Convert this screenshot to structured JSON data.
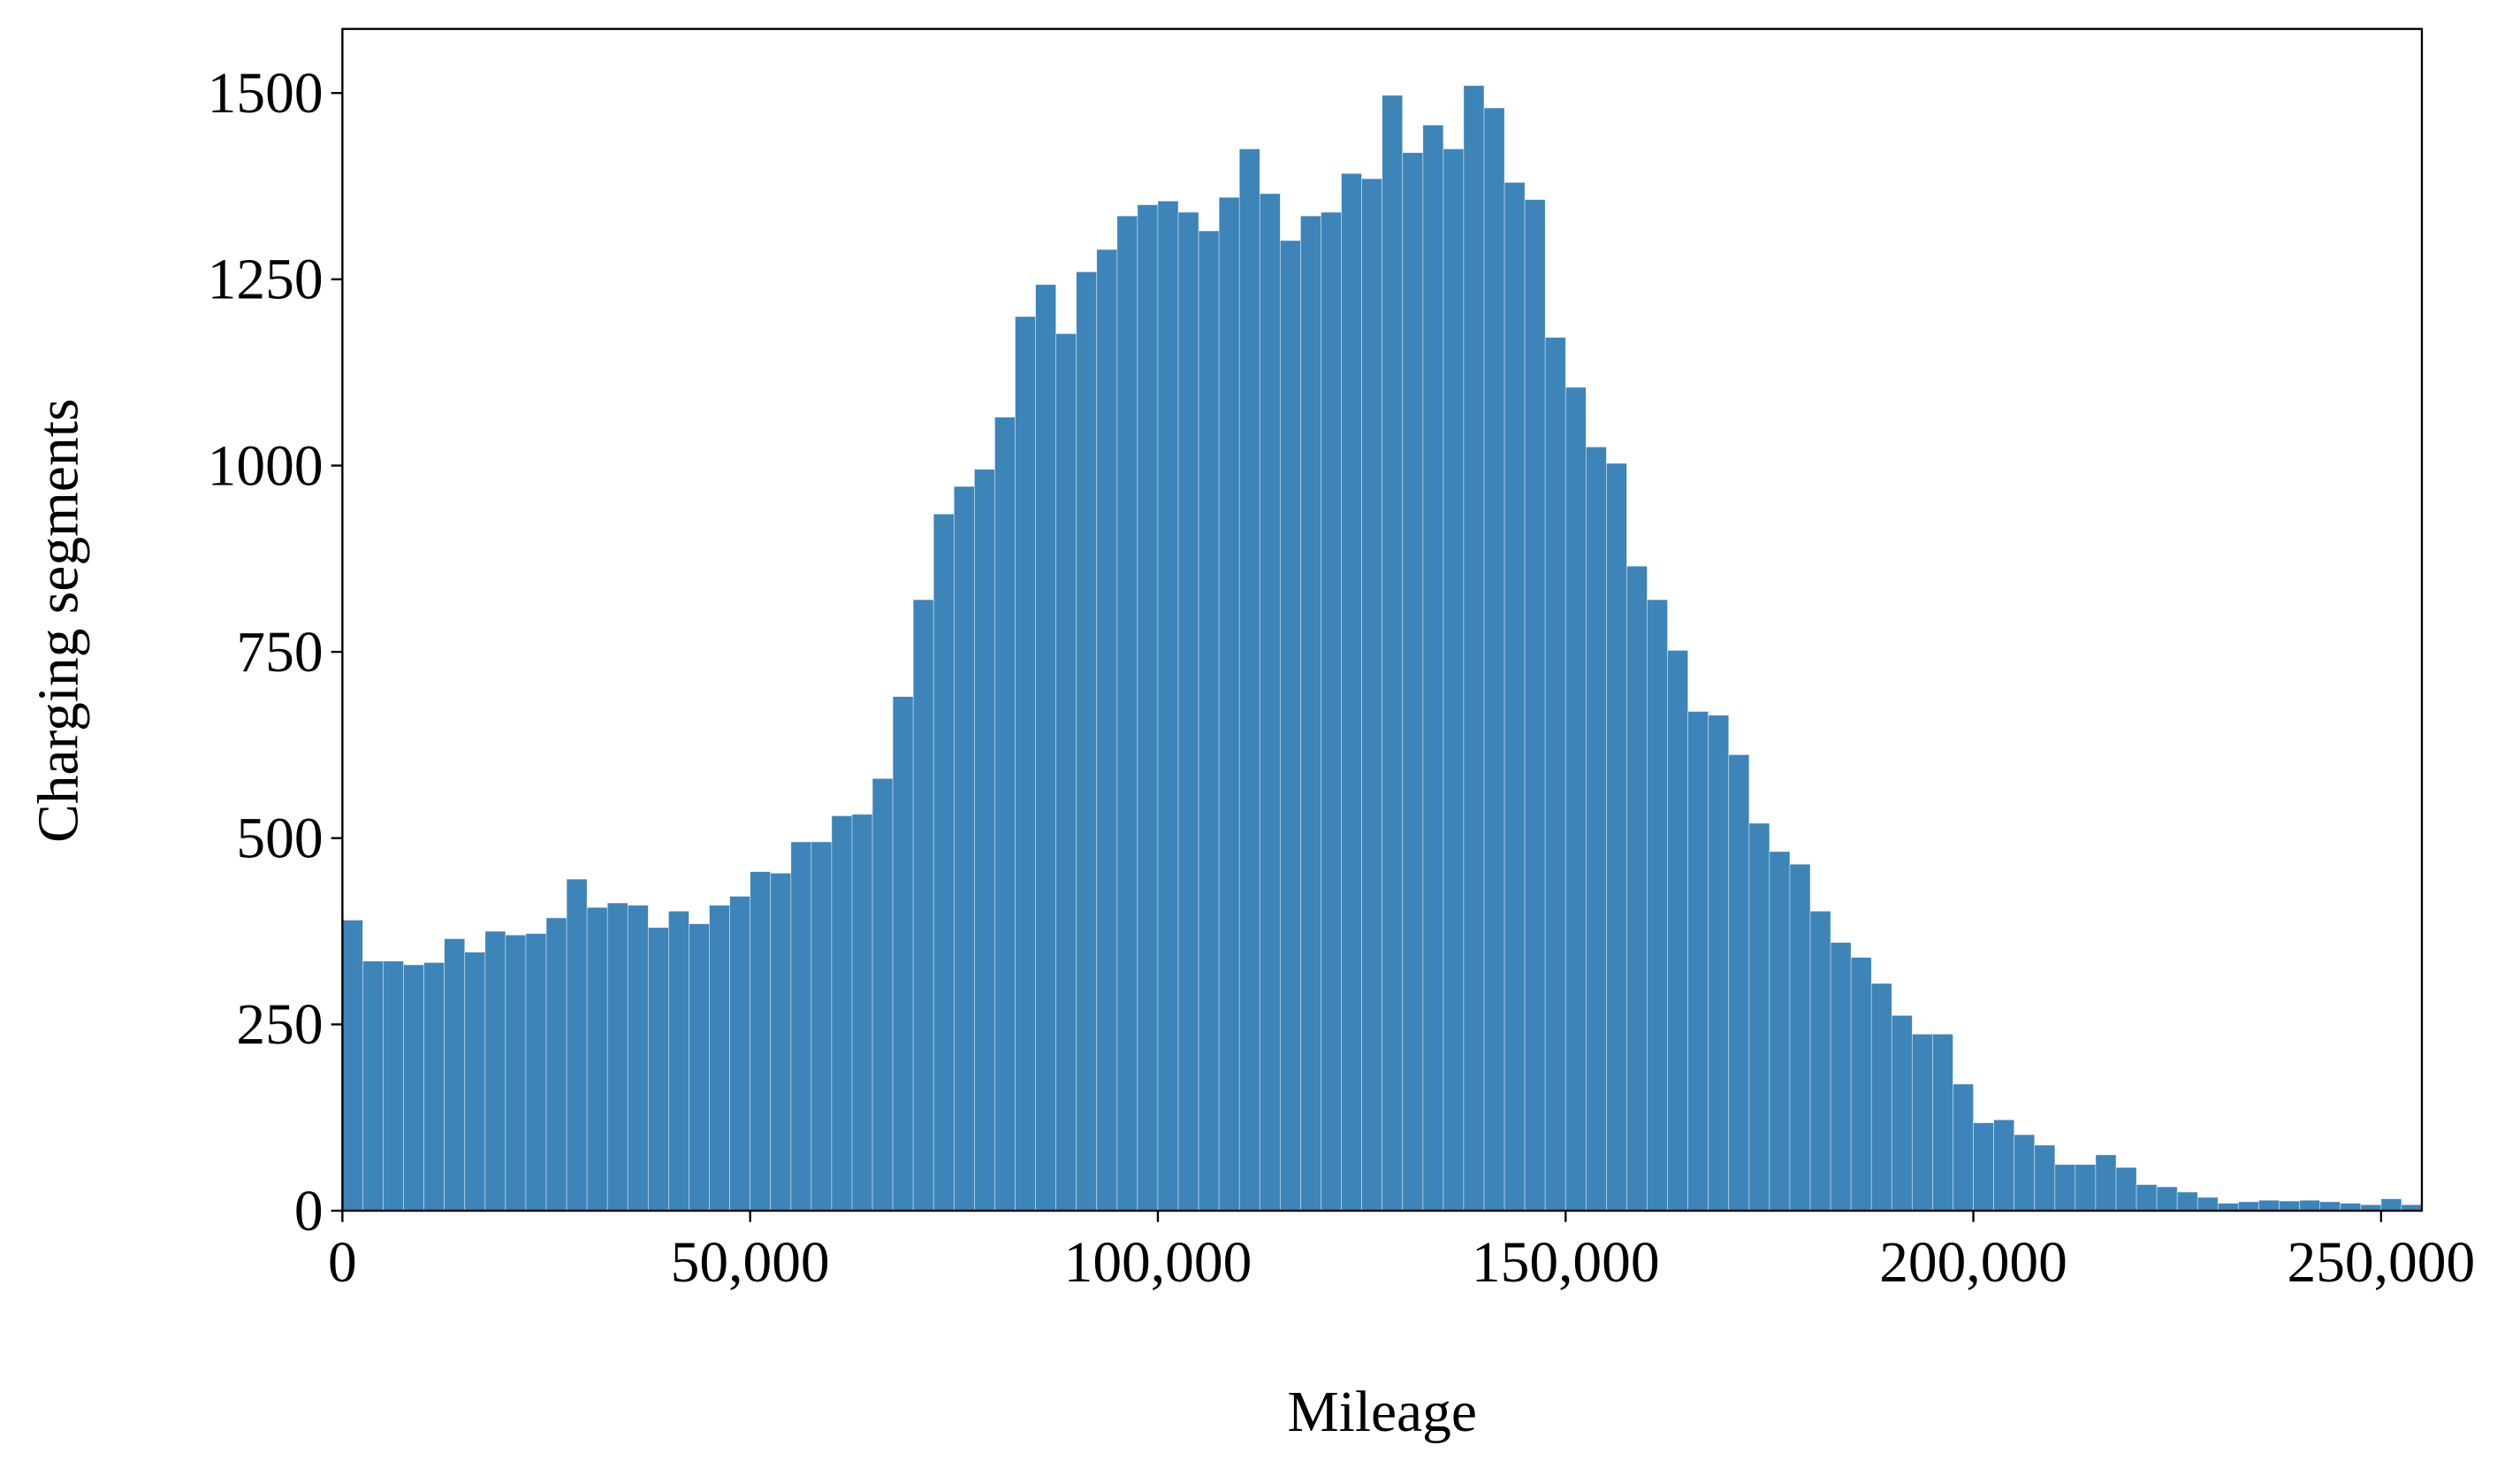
{
  "chart_data": {
    "type": "histogram",
    "xlabel": "Mileage",
    "ylabel": "Charging segments",
    "color": "#3d84b8",
    "bins": [
      0,
      2500,
      5000,
      7500,
      10000,
      12500,
      15000,
      17500,
      20000,
      22500,
      25000,
      27500,
      30000,
      32500,
      35000,
      37500,
      40000,
      42500,
      45000,
      47500,
      50000,
      52500,
      55000,
      57500,
      60000,
      62500,
      65000,
      67500,
      70000,
      72500,
      75000,
      77500,
      80000,
      82500,
      85000,
      87500,
      90000,
      92500,
      95000,
      97500,
      100000,
      102500,
      105000,
      107500,
      110000,
      112500,
      115000,
      117500,
      120000,
      122500,
      125000,
      127500,
      130000,
      132500,
      135000,
      137500,
      140000,
      142500,
      145000,
      147500,
      150000,
      152500,
      155000,
      157500,
      160000,
      162500,
      165000,
      167500,
      170000,
      172500,
      175000,
      177500,
      180000,
      182500,
      185000,
      187500,
      190000,
      192500,
      195000,
      197500,
      200000,
      202500,
      205000,
      207500,
      210000,
      212500,
      215000,
      217500,
      220000,
      222500,
      225000,
      227500,
      230000,
      232500,
      235000,
      237500,
      240000,
      242500,
      245000,
      247500,
      250000,
      252500,
      255000
    ],
    "values": [
      390,
      335,
      335,
      330,
      333,
      365,
      347,
      375,
      370,
      372,
      393,
      445,
      407,
      413,
      410,
      380,
      402,
      385,
      410,
      422,
      455,
      453,
      495,
      495,
      530,
      532,
      580,
      690,
      820,
      935,
      972,
      995,
      1065,
      1200,
      1243,
      1177,
      1260,
      1290,
      1335,
      1350,
      1355,
      1340,
      1315,
      1360,
      1425,
      1365,
      1302,
      1335,
      1340,
      1392,
      1385,
      1497,
      1420,
      1457,
      1425,
      1510,
      1480,
      1380,
      1357,
      1172,
      1105,
      1025,
      1003,
      865,
      820,
      752,
      670,
      665,
      612,
      520,
      482,
      465,
      402,
      360,
      340,
      305,
      262,
      237,
      237,
      170,
      118,
      122,
      102,
      88,
      62,
      62,
      75,
      58,
      35,
      32,
      25,
      18,
      10,
      12,
      14,
      13,
      14,
      12,
      10,
      8,
      16,
      8
    ],
    "xlim": [
      0,
      255000
    ],
    "ylim": [
      0,
      1586
    ],
    "xticks": [
      0,
      {
        "value": 50000,
        "label": "50,000"
      },
      {
        "value": 100000,
        "label": "100,000"
      },
      {
        "value": 150000,
        "label": "150,000"
      },
      {
        "value": 200000,
        "label": "200,000"
      },
      {
        "value": 250000,
        "label": "250,000"
      }
    ],
    "yticks": [
      0,
      250,
      500,
      750,
      1000,
      1250,
      1500
    ]
  }
}
